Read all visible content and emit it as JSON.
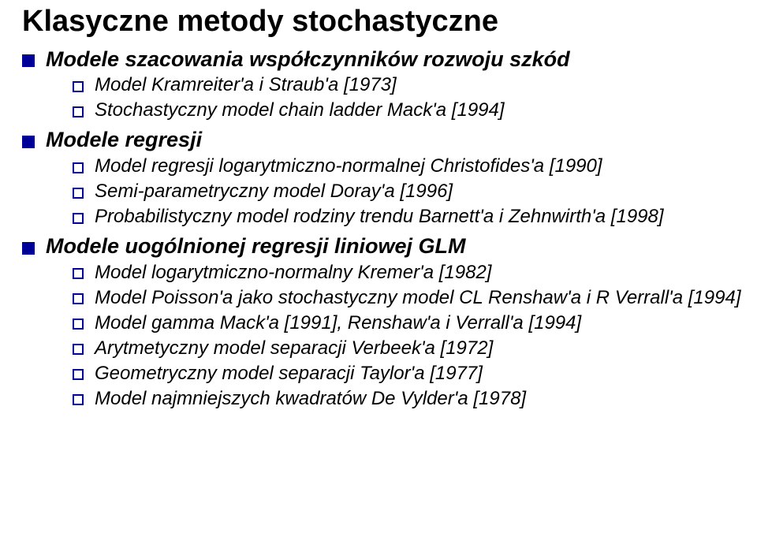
{
  "title": "Klasyczne metody stochastyczne",
  "sections": [
    {
      "heading": "Modele szacowania współczynników rozwoju szkód",
      "items": [
        "Model Kramreiter'a i Straub'a [1973]",
        "Stochastyczny model chain ladder Mack'a [1994]"
      ]
    },
    {
      "heading": "Modele regresji",
      "items": [
        "Model regresji logarytmiczno-normalnej Christofides'a [1990]",
        "Semi-parametryczny model Doray'a [1996]",
        "Probabilistyczny model rodziny trendu Barnett'a i Zehnwirth'a [1998]"
      ]
    },
    {
      "heading": "Modele uogólnionej regresji liniowej GLM",
      "items": [
        "Model logarytmiczno-normalny Kremer'a [1982]",
        "Model Poisson'a jako stochastyczny model CL Renshaw'a i R Verrall'a [1994]",
        "Model gamma Mack'a [1991], Renshaw'a i Verrall'a [1994]",
        "Arytmetyczny model separacji Verbeek'a [1972]",
        "Geometryczny model separacji Taylor'a [1977]",
        "Model najmniejszych kwadratów De Vylder'a [1978]"
      ]
    }
  ],
  "colors": {
    "bullet_fill": "#000099",
    "bullet_outline": "#000099",
    "background": "#ffffff",
    "text": "#000000"
  },
  "fontsizes": {
    "title_pt": 38,
    "lvl1_pt": 27,
    "lvl2_pt": 24
  }
}
